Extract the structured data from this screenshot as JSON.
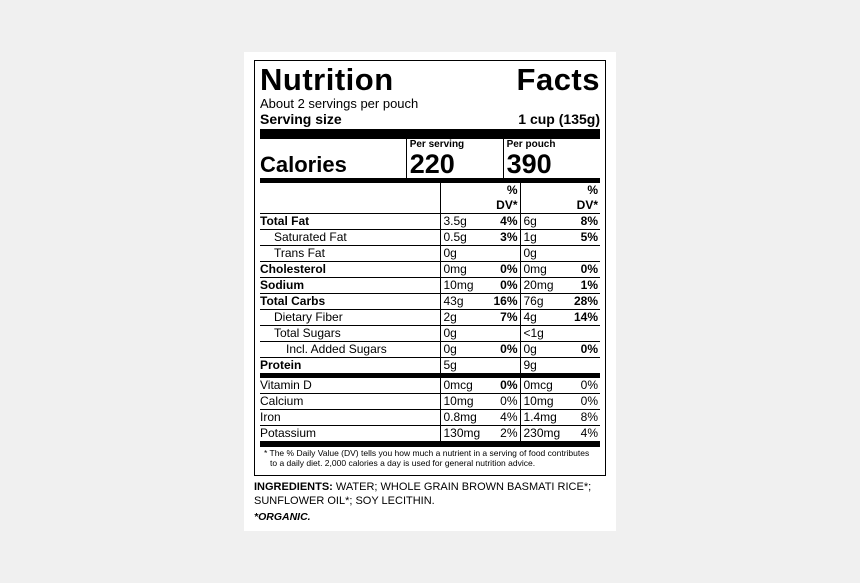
{
  "title_a": "Nutrition",
  "title_b": "Facts",
  "servings_per": "About 2 servings per pouch",
  "serving_size_label": "Serving size",
  "serving_size_value": "1 cup (135g)",
  "col_serving": "Per serving",
  "col_pouch": "Per pouch",
  "calories_label": "Calories",
  "calories_serving": "220",
  "calories_pouch": "390",
  "dv_header": "% DV*",
  "rows": [
    {
      "label": "Total Fat",
      "bold": true,
      "indent": 0,
      "amt": "3.5g",
      "dv": "4%",
      "amt2": "6g",
      "dv2": "8%",
      "dv2bold": true
    },
    {
      "label": "Saturated Fat",
      "bold": false,
      "indent": 1,
      "amt": "0.5g",
      "dv": "3%",
      "amt2": "1g",
      "dv2": "5%",
      "dv2bold": true
    },
    {
      "label": "Trans Fat",
      "bold": false,
      "indent": 1,
      "amt": "0g",
      "dv": "",
      "amt2": "0g",
      "dv2": "",
      "dv2bold": false
    },
    {
      "label": "Cholesterol",
      "bold": true,
      "indent": 0,
      "amt": "0mg",
      "dv": "0%",
      "amt2": "0mg",
      "dv2": "0%",
      "dv2bold": true
    },
    {
      "label": "Sodium",
      "bold": true,
      "indent": 0,
      "amt": "10mg",
      "dv": "0%",
      "amt2": "20mg",
      "dv2": "1%",
      "dv2bold": true
    },
    {
      "label": "Total Carbs",
      "bold": true,
      "indent": 0,
      "amt": "43g",
      "dv": "16%",
      "amt2": "76g",
      "dv2": "28%",
      "dv2bold": true
    },
    {
      "label": "Dietary Fiber",
      "bold": false,
      "indent": 1,
      "amt": "2g",
      "dv": "7%",
      "amt2": "4g",
      "dv2": "14%",
      "dv2bold": true
    },
    {
      "label": "Total Sugars",
      "bold": false,
      "indent": 1,
      "amt": "0g",
      "dv": "",
      "amt2": "<1g",
      "dv2": "",
      "dv2bold": false
    },
    {
      "label": "Incl. Added Sugars",
      "bold": false,
      "indent": 2,
      "amt": "0g",
      "dv": "0%",
      "amt2": "0g",
      "dv2": "0%",
      "dv2bold": true
    },
    {
      "label": "Protein",
      "bold": true,
      "indent": 0,
      "amt": "5g",
      "dv": "",
      "amt2": "9g",
      "dv2": "",
      "dv2bold": false
    }
  ],
  "vit_rows": [
    {
      "label": "Vitamin D",
      "amt": "0mcg",
      "dv": "0%",
      "amt2": "0mcg",
      "dv2": "0%"
    },
    {
      "label": "Calcium",
      "amt": "10mg",
      "dv": "0%",
      "amt2": "10mg",
      "dv2": "0%"
    },
    {
      "label": "Iron",
      "amt": "0.8mg",
      "dv": "4%",
      "amt2": "1.4mg",
      "dv2": "8%"
    },
    {
      "label": "Potassium",
      "amt": "130mg",
      "dv": "2%",
      "amt2": "230mg",
      "dv2": "4%"
    }
  ],
  "footnote": "* The % Daily Value (DV) tells you how much a nutrient in a serving of food contributes to a daily diet. 2,000 calories a day is used for general nutrition advice.",
  "ingredients_label": "INGREDIENTS:",
  "ingredients_text": " WATER; WHOLE GRAIN BROWN BASMATI RICE*; SUNFLOWER OIL*; SOY LECITHIN.",
  "organic_note": "*ORGANIC.",
  "colors": {
    "bg": "#ffffff",
    "fg": "#000000"
  }
}
